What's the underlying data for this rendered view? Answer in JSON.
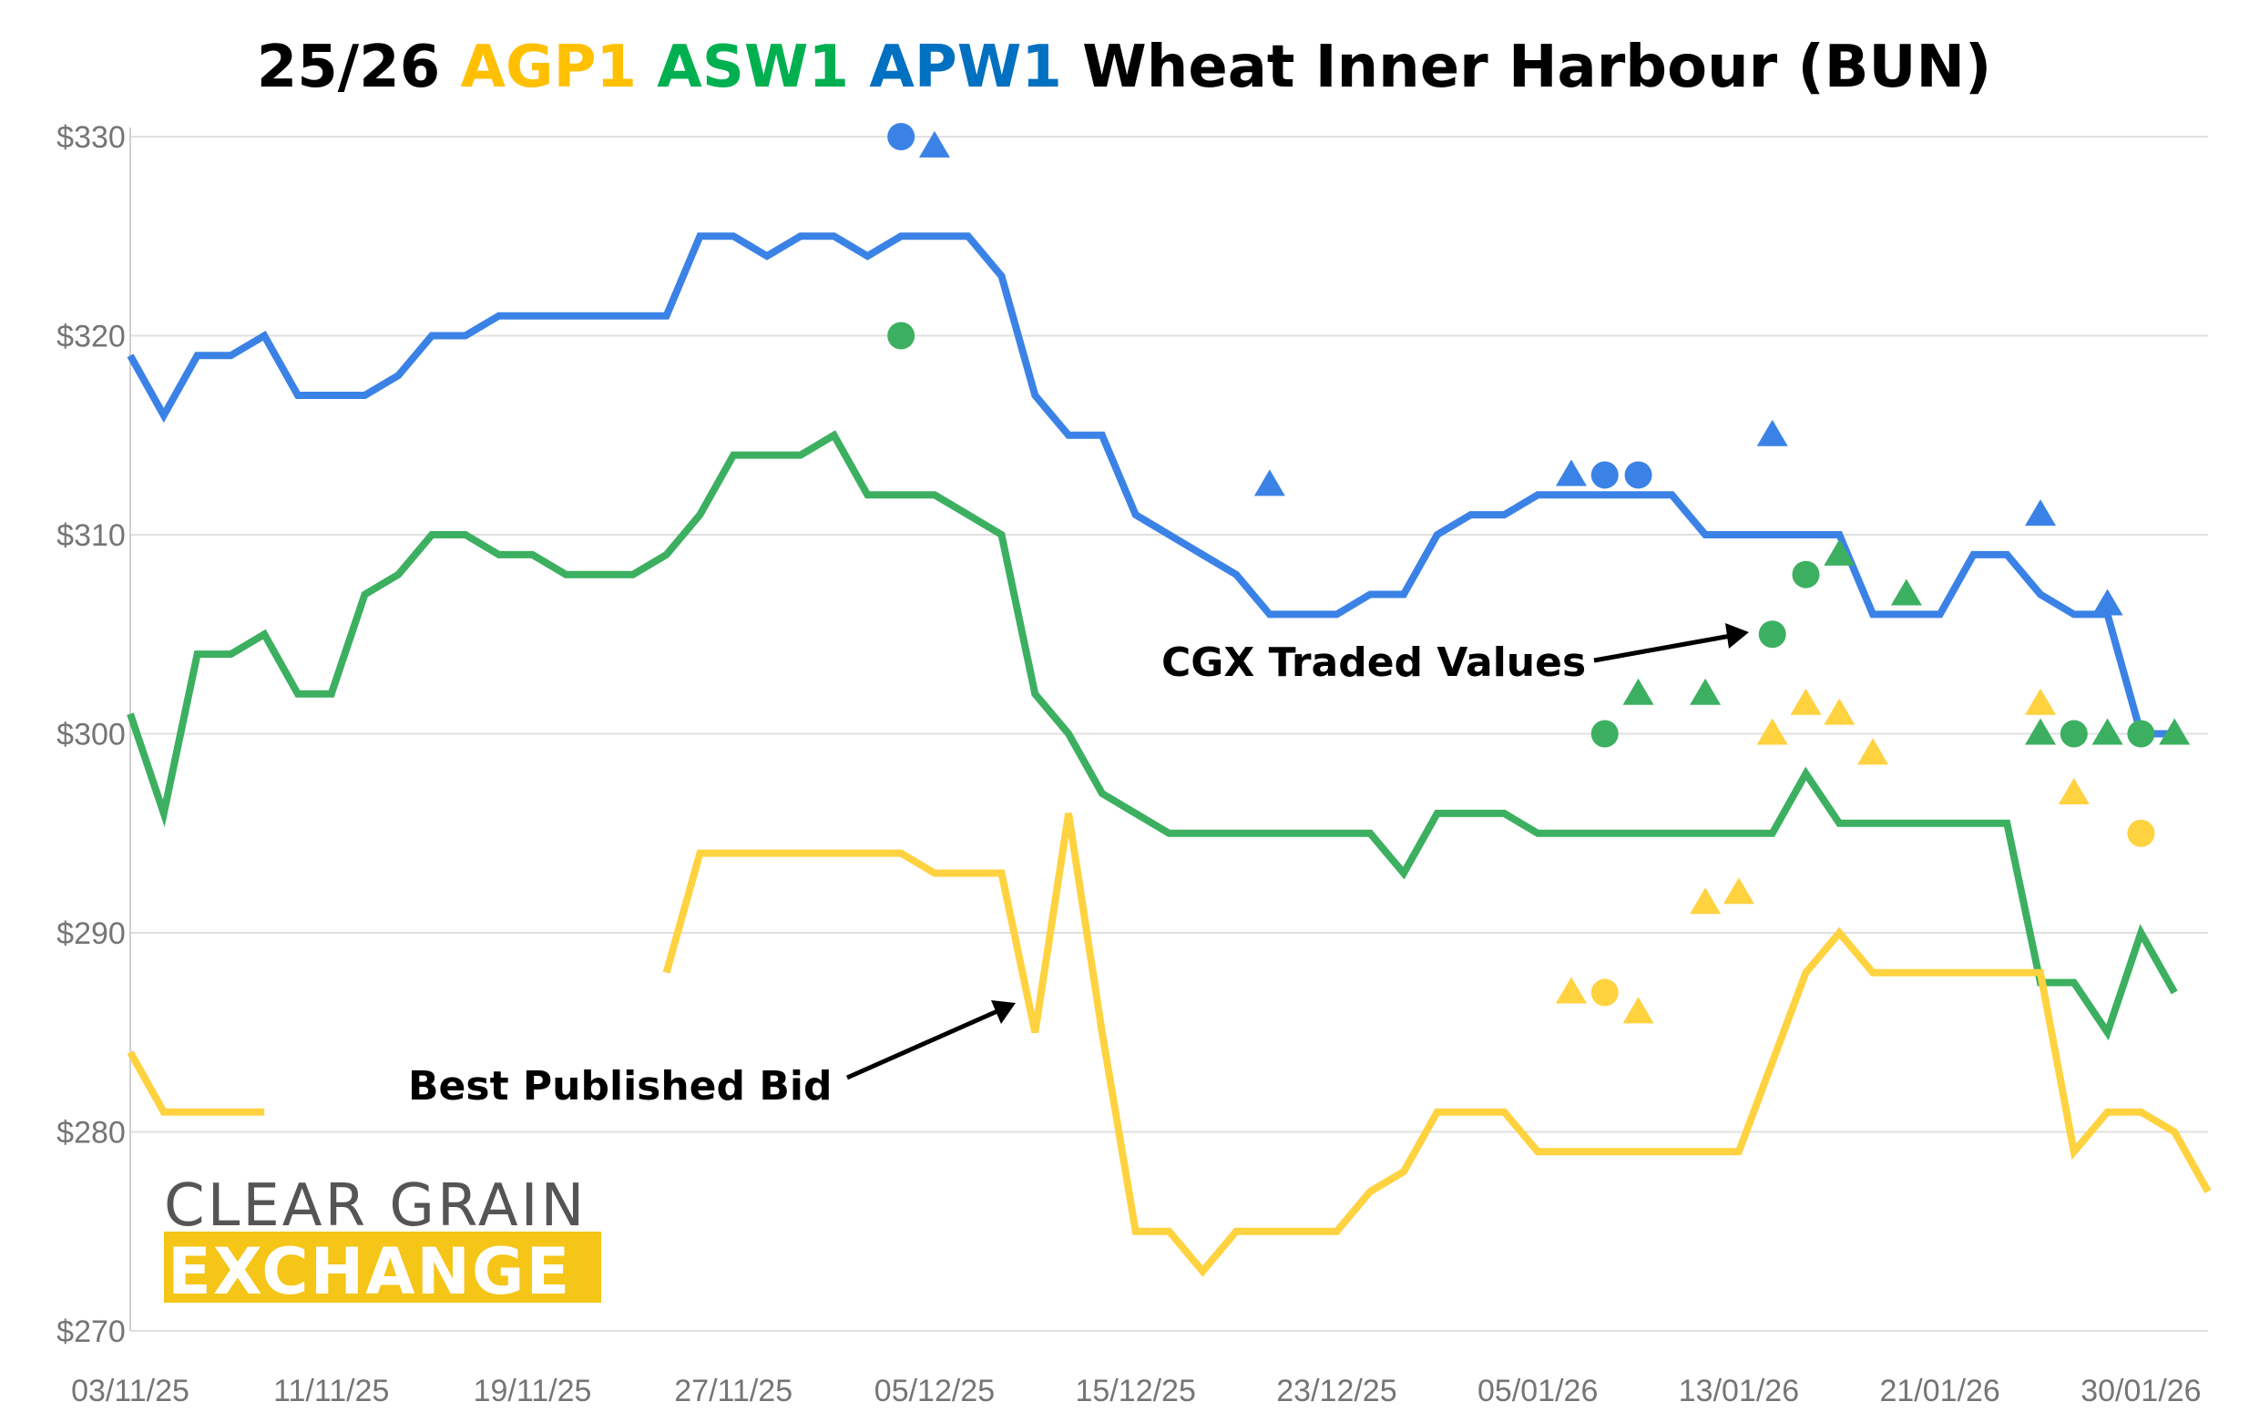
{
  "chart_data": {
    "type": "line",
    "title_parts": [
      {
        "text": "25/26 ",
        "color": "#000000"
      },
      {
        "text": "AGP1 ",
        "color": "#FFC000"
      },
      {
        "text": "ASW1 ",
        "color": "#00B050"
      },
      {
        "text": "APW1 ",
        "color": "#0070C0"
      },
      {
        "text": "Wheat Inner Harbour  (BUN)",
        "color": "#000000"
      }
    ],
    "x_ticks": [
      "03/11/25",
      "11/11/25",
      "19/11/25",
      "27/11/25",
      "05/12/25",
      "15/12/25",
      "23/12/25",
      "05/01/26",
      "13/01/26",
      "21/01/26",
      "30/01/26"
    ],
    "y_ticks": [
      "$330",
      "$320",
      "$310",
      "$300",
      "$290",
      "$280",
      "$270"
    ],
    "ylim": [
      270,
      330
    ],
    "grid": true,
    "series": [
      {
        "key": "apw1",
        "color": "#3B82E6",
        "values": [
          319,
          316,
          319,
          319,
          320,
          317,
          317,
          317,
          318,
          320,
          320,
          321,
          321,
          321,
          321,
          321,
          321,
          325,
          325,
          324,
          325,
          325,
          324,
          325,
          325,
          325,
          323,
          317,
          315,
          315,
          311,
          310,
          309,
          308,
          306,
          306,
          306,
          307,
          307,
          310,
          311,
          311,
          312,
          312,
          312,
          312,
          312,
          310,
          310,
          310,
          310,
          310,
          306,
          306,
          306,
          309,
          309,
          307,
          306,
          306,
          300,
          300
        ]
      },
      {
        "key": "asw1",
        "color": "#3CB060",
        "values": [
          301,
          296,
          304,
          304,
          305,
          302,
          302,
          307,
          308,
          310,
          310,
          309,
          309,
          308,
          308,
          308,
          309,
          311,
          314,
          314,
          314,
          315,
          312,
          312,
          312,
          311,
          310,
          302,
          300,
          297,
          296,
          295,
          295,
          295,
          295,
          295,
          295,
          295,
          293,
          296,
          296,
          296,
          295,
          295,
          295,
          295,
          295,
          295,
          295,
          295,
          298,
          295.5,
          295.5,
          295.5,
          295.5,
          295.5,
          295.5,
          287.5,
          287.5,
          285,
          290,
          287
        ]
      },
      {
        "key": "agp1",
        "color": "#FFD23F",
        "values": [
          284,
          281,
          281,
          281,
          281,
          null,
          null,
          null,
          null,
          null,
          null,
          null,
          null,
          null,
          null,
          null,
          288,
          294,
          294,
          294,
          294,
          294,
          294,
          294,
          293,
          293,
          293,
          285,
          296,
          285,
          275,
          275,
          273,
          275,
          275,
          275,
          275,
          277,
          278,
          281,
          281,
          281,
          279,
          279,
          279,
          279,
          279,
          279,
          279,
          283.5,
          288,
          290,
          288,
          288,
          288,
          288,
          288,
          288,
          279,
          281,
          281,
          280,
          277
        ]
      }
    ],
    "traded_values": [
      {
        "series": "apw1",
        "shape": "circle",
        "x": 23,
        "y": 330
      },
      {
        "series": "apw1",
        "shape": "triangle",
        "x": 24,
        "y": 329.5
      },
      {
        "series": "asw1",
        "shape": "circle",
        "x": 23,
        "y": 320
      },
      {
        "series": "apw1",
        "shape": "triangle",
        "x": 34,
        "y": 312.5
      },
      {
        "series": "apw1",
        "shape": "triangle",
        "x": 43,
        "y": 313
      },
      {
        "series": "apw1",
        "shape": "circle",
        "x": 44,
        "y": 313
      },
      {
        "series": "apw1",
        "shape": "circle",
        "x": 45,
        "y": 313
      },
      {
        "series": "apw1",
        "shape": "triangle",
        "x": 49,
        "y": 315
      },
      {
        "series": "apw1",
        "shape": "triangle",
        "x": 57,
        "y": 311
      },
      {
        "series": "apw1",
        "shape": "triangle",
        "x": 59,
        "y": 306.5
      },
      {
        "series": "asw1",
        "shape": "circle",
        "x": 50,
        "y": 308
      },
      {
        "series": "asw1",
        "shape": "triangle",
        "x": 51,
        "y": 309
      },
      {
        "series": "asw1",
        "shape": "circle",
        "x": 49,
        "y": 305
      },
      {
        "series": "asw1",
        "shape": "triangle",
        "x": 53,
        "y": 307
      },
      {
        "series": "asw1",
        "shape": "circle",
        "x": 44,
        "y": 300
      },
      {
        "series": "asw1",
        "shape": "triangle",
        "x": 45,
        "y": 302
      },
      {
        "series": "asw1",
        "shape": "triangle",
        "x": 47,
        "y": 302
      },
      {
        "series": "asw1",
        "shape": "triangle",
        "x": 57,
        "y": 300
      },
      {
        "series": "asw1",
        "shape": "circle",
        "x": 58,
        "y": 300
      },
      {
        "series": "asw1",
        "shape": "triangle",
        "x": 59,
        "y": 300
      },
      {
        "series": "asw1",
        "shape": "circle",
        "x": 60,
        "y": 300
      },
      {
        "series": "asw1",
        "shape": "triangle",
        "x": 61,
        "y": 300
      },
      {
        "series": "agp1",
        "shape": "triangle",
        "x": 49,
        "y": 300
      },
      {
        "series": "agp1",
        "shape": "triangle",
        "x": 50,
        "y": 301.5
      },
      {
        "series": "agp1",
        "shape": "triangle",
        "x": 51,
        "y": 301
      },
      {
        "series": "agp1",
        "shape": "triangle",
        "x": 52,
        "y": 299
      },
      {
        "series": "agp1",
        "shape": "triangle",
        "x": 57,
        "y": 301.5
      },
      {
        "series": "agp1",
        "shape": "triangle",
        "x": 58,
        "y": 297
      },
      {
        "series": "agp1",
        "shape": "circle",
        "x": 60,
        "y": 295
      },
      {
        "series": "agp1",
        "shape": "triangle",
        "x": 47,
        "y": 291.5
      },
      {
        "series": "agp1",
        "shape": "triangle",
        "x": 48,
        "y": 292
      },
      {
        "series": "agp1",
        "shape": "triangle",
        "x": 43,
        "y": 287
      },
      {
        "series": "agp1",
        "shape": "circle",
        "x": 44,
        "y": 287
      },
      {
        "series": "agp1",
        "shape": "triangle",
        "x": 45,
        "y": 286
      }
    ],
    "annotations": [
      {
        "key": "cgx",
        "text": "CGX Traded Values"
      },
      {
        "key": "bpb",
        "text": "Best Published Bid"
      }
    ]
  },
  "logo": {
    "line1": "CLEAR GRAIN",
    "line2": "EXCHANGE",
    "color": "#F5C518"
  }
}
